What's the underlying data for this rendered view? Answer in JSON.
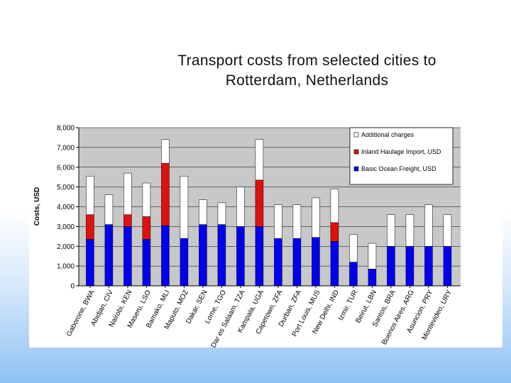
{
  "slide": {
    "title_line1": "Transport costs from selected cities to",
    "title_line2": "Rotterdam, Netherlands",
    "dot": "."
  },
  "colors": {
    "ocean": "#0000ee",
    "inland": "#e01010",
    "additional": "#ffffff",
    "plot_bg": "#c8c8c8"
  },
  "chart_data": {
    "type": "bar",
    "stacked": true,
    "title": "Transport costs from selected cities to Rotterdam, Netherlands",
    "xlabel": "",
    "ylabel": "Costs, USD",
    "ylim": [
      0,
      8000
    ],
    "yticks": [
      0,
      1000,
      2000,
      3000,
      4000,
      5000,
      6000,
      7000,
      8000
    ],
    "ytick_labels": [
      "0",
      "1,000",
      "2,000",
      "3,000",
      "4,000",
      "5,000",
      "6,000",
      "7,000",
      "8,000"
    ],
    "legend_position": "top-right",
    "categories": [
      "Gaborone, BWA",
      "Abidjan, CIV",
      "Nairobi, KEN",
      "Maseru, LSO",
      "Bamako, MLI",
      "Maputo, MOZ",
      "Dakar, SEN",
      "Lome, TGO",
      "Dar es Salaam, TZA",
      "Kampala, UGA",
      "Capetown, ZFA",
      "Durban, ZFA",
      "Port Louis, MUS",
      "New Delhi, IND",
      "Izmir, TUR",
      "Beirut, LBN",
      "Santos, BRA",
      "Buenos Aires, ARG",
      "Asuncion, PRY",
      "Montevideo, URY"
    ],
    "series": [
      {
        "name": "Basic Ocean Freight, USD",
        "key": "ocean",
        "values": [
          2350,
          3100,
          3000,
          2350,
          3050,
          2400,
          3100,
          3100,
          3000,
          3000,
          2400,
          2400,
          2450,
          2250,
          1200,
          850,
          2000,
          2000,
          2000,
          2000
        ]
      },
      {
        "name": "Inland Haulage Import, USD",
        "key": "inland",
        "values": [
          1250,
          0,
          600,
          1150,
          3150,
          0,
          0,
          0,
          0,
          2350,
          0,
          0,
          0,
          950,
          0,
          0,
          0,
          0,
          0,
          0
        ]
      },
      {
        "name": "Additional charges",
        "key": "additional",
        "values": [
          1950,
          1500,
          2100,
          1700,
          1200,
          3150,
          1250,
          1100,
          2000,
          2050,
          1700,
          1700,
          2000,
          1700,
          1400,
          1300,
          1600,
          1600,
          2100,
          1600
        ]
      }
    ],
    "legend_order": [
      "Additional charges",
      "Inland Haulage Import, USD",
      "Basic Ocean Freight, USD"
    ]
  }
}
